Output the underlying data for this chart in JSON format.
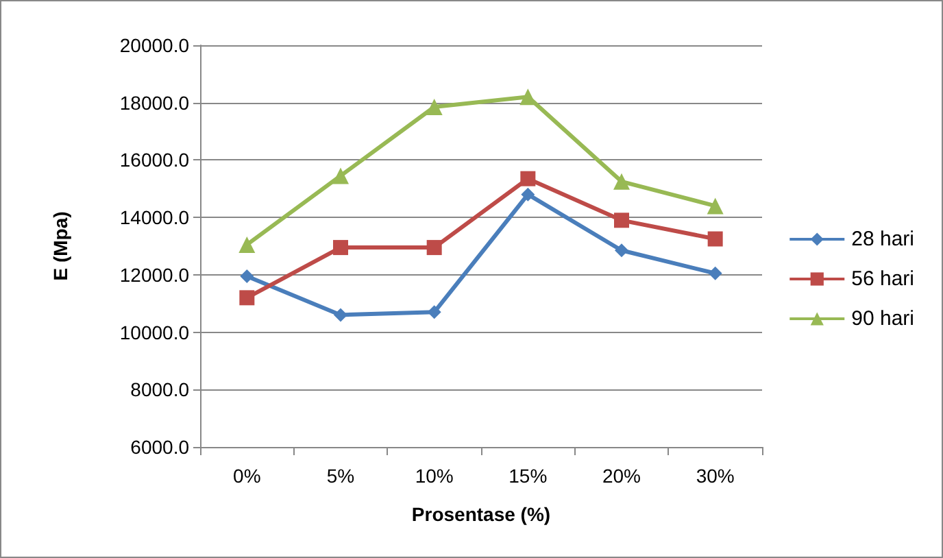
{
  "chart_data": {
    "type": "line",
    "xlabel": "Prosentase (%)",
    "ylabel": "E (Mpa)",
    "categories": [
      "0%",
      "5%",
      "10%",
      "15%",
      "20%",
      "30%"
    ],
    "series": [
      {
        "name": "28 hari",
        "color": "#4a7ebb",
        "marker": "diamond",
        "values": [
          11950,
          10600,
          10700,
          14800,
          12850,
          12050
        ]
      },
      {
        "name": "56 hari",
        "color": "#be4b48",
        "marker": "square",
        "values": [
          11200,
          12950,
          12950,
          15350,
          13900,
          13250
        ]
      },
      {
        "name": "90 hari",
        "color": "#98b954",
        "marker": "triangle",
        "values": [
          13050,
          15450,
          17850,
          18200,
          15250,
          14400
        ]
      }
    ],
    "ylim": [
      6000,
      20000
    ],
    "yticks": [
      {
        "value": 6000,
        "label": "6000.0"
      },
      {
        "value": 8000,
        "label": "8000.0"
      },
      {
        "value": 10000,
        "label": "10000.0"
      },
      {
        "value": 12000,
        "label": "12000.0"
      },
      {
        "value": 14000,
        "label": "14000.0"
      },
      {
        "value": 16000,
        "label": "16000.0"
      },
      {
        "value": 18000,
        "label": "18000.0"
      },
      {
        "value": 20000,
        "label": "20000.0"
      }
    ],
    "grid": "y",
    "legend": "right"
  }
}
